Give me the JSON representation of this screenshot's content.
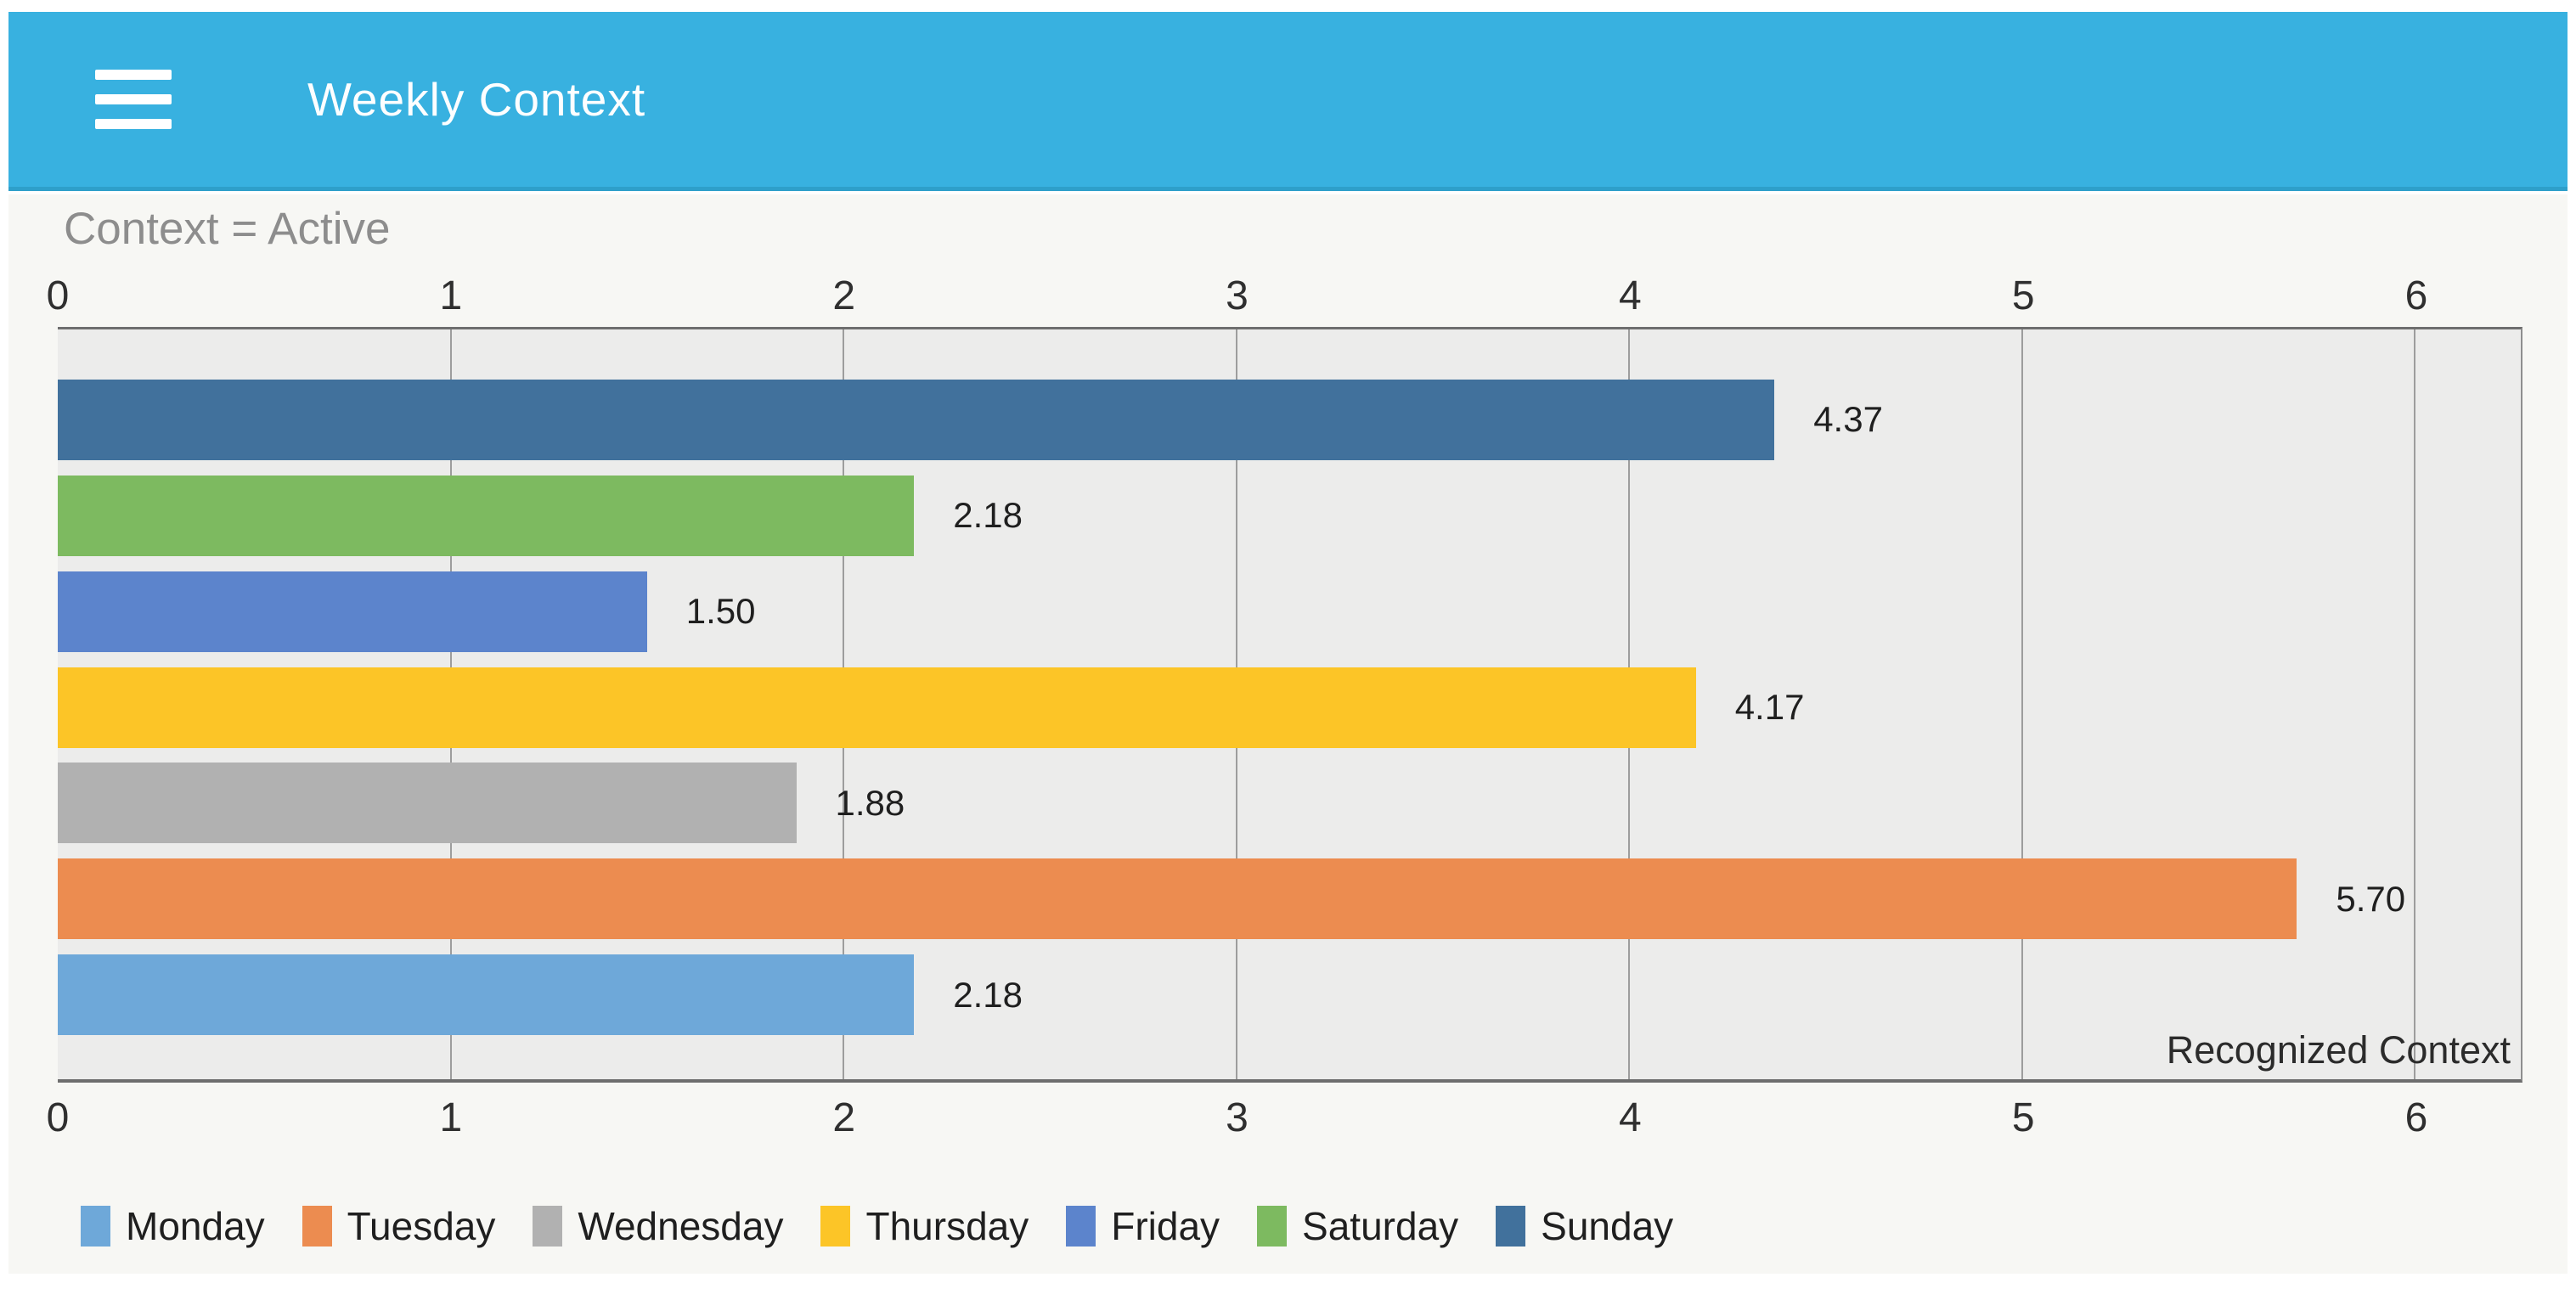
{
  "header": {
    "title": "Weekly Context",
    "menu_icon": "hamburger-menu-icon",
    "bg_color": "#38b1e0",
    "shadow_color": "#2e9fca",
    "text_color": "#fdfeff"
  },
  "content": {
    "bg_color": "#f7f7f4"
  },
  "chart_data": {
    "type": "bar",
    "orientation": "horizontal",
    "title": "Context = Active",
    "annotation": "Recognized Context",
    "x_ticks": [
      0,
      1,
      2,
      3,
      4,
      5,
      6
    ],
    "x_max": 6.27,
    "xlim": [
      0,
      6.27
    ],
    "grid": true,
    "legend_position": "bottom",
    "bar_display_order_top_to_bottom": [
      "Sunday",
      "Saturday",
      "Friday",
      "Thursday",
      "Wednesday",
      "Tuesday",
      "Monday"
    ],
    "series": [
      {
        "name": "Monday",
        "value": 2.18,
        "label": "2.18",
        "color": "#6ea8d9"
      },
      {
        "name": "Tuesday",
        "value": 5.7,
        "label": "5.70",
        "color": "#ec8c50"
      },
      {
        "name": "Wednesday",
        "value": 1.88,
        "label": "1.88",
        "color": "#b1b1b1"
      },
      {
        "name": "Thursday",
        "value": 4.17,
        "label": "4.17",
        "color": "#fcc527"
      },
      {
        "name": "Friday",
        "value": 1.5,
        "label": "1.50",
        "color": "#5c84cc"
      },
      {
        "name": "Saturday",
        "value": 2.18,
        "label": "2.18",
        "color": "#7dba60"
      },
      {
        "name": "Sunday",
        "value": 4.37,
        "label": "4.37",
        "color": "#41719c"
      }
    ],
    "colors": {
      "plot_bg": "#ececeb",
      "gridline": "#9d9d9d",
      "axis_line": "#6e6e6e",
      "title_text": "#8d8d8d",
      "tick_text": "#2f2f2f",
      "value_text": "#1f1f1f",
      "annotation_text": "#2b2b2b",
      "legend_text": "#1f1f1f"
    }
  }
}
